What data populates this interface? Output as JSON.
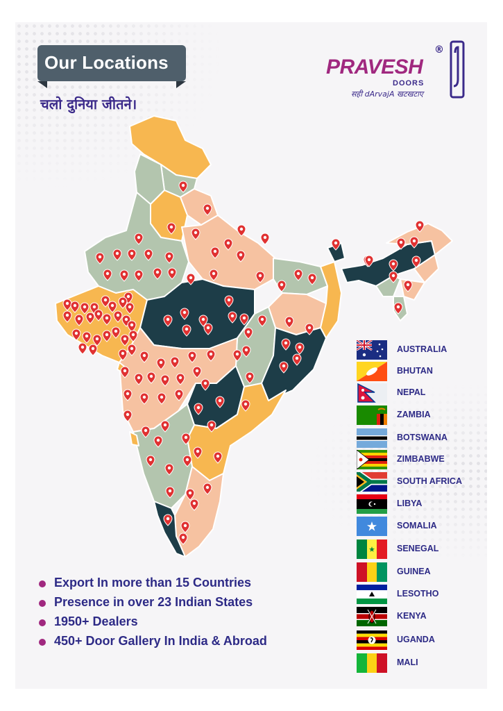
{
  "header": {
    "title": "Our Locations",
    "tagline_hindi": "चलो दुनिया जीतने।"
  },
  "logo": {
    "brand": "PRAVESH",
    "registered": "®",
    "sub": "DOORS",
    "tagline": "सही dArvajA खटखटाए"
  },
  "map": {
    "colors": {
      "orange": "#f7b750",
      "peach": "#f6c2a1",
      "sage": "#b3c5ae",
      "teal": "#1d3d48",
      "pin": "#e03131"
    }
  },
  "countries": [
    {
      "name": "AUSTRALIA",
      "flag_icon": "australia-flag-icon"
    },
    {
      "name": "BHUTAN",
      "flag_icon": "bhutan-flag-icon"
    },
    {
      "name": "NEPAL",
      "flag_icon": "nepal-flag-icon"
    },
    {
      "name": "ZAMBIA",
      "flag_icon": "zambia-flag-icon"
    },
    {
      "name": "BOTSWANA",
      "flag_icon": "botswana-flag-icon"
    },
    {
      "name": "ZIMBABWE",
      "flag_icon": "zimbabwe-flag-icon"
    },
    {
      "name": "SOUTH AFRICA",
      "flag_icon": "south-africa-flag-icon"
    },
    {
      "name": "LIBYA",
      "flag_icon": "libya-flag-icon"
    },
    {
      "name": "SOMALIA",
      "flag_icon": "somalia-flag-icon"
    },
    {
      "name": "SENEGAL",
      "flag_icon": "senegal-flag-icon"
    },
    {
      "name": "GUINEA",
      "flag_icon": "guinea-flag-icon"
    },
    {
      "name": "LESOTHO",
      "flag_icon": "lesotho-flag-icon"
    },
    {
      "name": "KENYA",
      "flag_icon": "kenya-flag-icon"
    },
    {
      "name": "UGANDA",
      "flag_icon": "uganda-flag-icon"
    },
    {
      "name": "MALI",
      "flag_icon": "mali-flag-icon"
    }
  ],
  "highlights": [
    "Export In more than 15 Countries",
    "Presence in over 23 Indian States",
    "1950+ Dealers",
    "450+ Door Gallery In India & Abroad"
  ]
}
